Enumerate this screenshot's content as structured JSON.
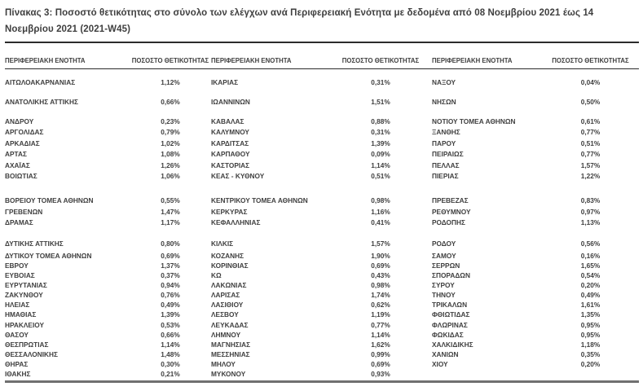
{
  "title": "Πίνακας 3: Ποσοστό θετικότητας στο σύνολο των ελέγχων ανά Περιφερειακή Ενότητα με δεδομένα από 08 Νοεμβρίου 2021 έως 14 Νοεμβρίου 2021 (2021-W45)",
  "colors": {
    "text": "#404040",
    "rule_dark": "#2b2b2b",
    "rule_gray": "#707070"
  },
  "table": {
    "headers": [
      "ΠΕΡΙΦΕΡΕΙΑΚΗ ΕΝΟΤΗΤΑ",
      "ΠΟΣΟΣΤΟ ΘΕΤΙΚΟΤΗΤΑΣ",
      "ΠΕΡΙΦΕΡΕΙΑΚΗ ΕΝΟΤΗΤΑ",
      "ΠΟΣΟΣΤΟ ΘΕΤΙΚΟΤΗΤΑΣ",
      "ΠΕΡΙΦΕΡΕΙΑΚΗ ΕΝΟΤΗΤΑ",
      "ΠΟΣΟΣΤΟ ΘΕΤΙΚΟΤΗΤΑΣ"
    ],
    "groups": [
      {
        "style": "spaced",
        "rows": [
          [
            "ΑΙΤΩΛΟΑΚΑΡΝΑΝΙΑΣ",
            "1,12%",
            "ΙΚΑΡΙΑΣ",
            "0,31%",
            "ΝΑΞΟΥ",
            "0,04%"
          ],
          [
            "ΑΝΑΤΟΛΙΚΗΣ ΑΤΤΙΚΗΣ",
            "0,66%",
            "ΙΩΑΝΝΙΝΩΝ",
            "1,51%",
            "ΝΗΣΩΝ",
            "0,50%"
          ]
        ]
      },
      {
        "style": "block-b",
        "rows": [
          [
            "ΑΝΔΡΟΥ",
            "0,23%",
            "ΚΑΒΑΛΑΣ",
            "0,88%",
            "ΝΟΤΙΟΥ ΤΟΜΕΑ ΑΘΗΝΩΝ",
            "0,61%"
          ],
          [
            "ΑΡΓΟΛΙΔΑΣ",
            "0,79%",
            "ΚΑΛΥΜΝΟΥ",
            "0,31%",
            "ΞΑΝΘΗΣ",
            "0,77%"
          ],
          [
            "ΑΡΚΑΔΙΑΣ",
            "1,02%",
            "ΚΑΡΔΙΤΣΑΣ",
            "1,39%",
            "ΠΑΡΟΥ",
            "0,51%"
          ],
          [
            "ΑΡΤΑΣ",
            "1,08%",
            "ΚΑΡΠΑΘΟΥ",
            "0,09%",
            "ΠΕΙΡΑΙΩΣ",
            "0,77%"
          ],
          [
            "ΑΧΑΪΑΣ",
            "1,26%",
            "ΚΑΣΤΟΡΙΑΣ",
            "1,14%",
            "ΠΕΛΛΑΣ",
            "1,57%"
          ],
          [
            "ΒΟΙΩΤΙΑΣ",
            "1,06%",
            "ΚΕΑΣ - ΚΥΘΝΟΥ",
            "0,51%",
            "ΠΙΕΡΙΑΣ",
            "1,22%"
          ]
        ]
      },
      {
        "style": "block-c",
        "rows": [
          [
            "ΒΟΡΕΙΟΥ ΤΟΜΕΑ ΑΘΗΝΩΝ",
            "0,55%",
            "ΚΕΝΤΡΙΚΟΥ ΤΟΜΕΑ ΑΘΗΝΩΝ",
            "0,98%",
            "ΠΡΕΒΕΖΑΣ",
            "0,83%"
          ],
          [
            "ΓΡΕΒΕΝΩΝ",
            "1,47%",
            "ΚΕΡΚΥΡΑΣ",
            "1,16%",
            "ΡΕΘΥΜΝΟΥ",
            "0,97%"
          ],
          [
            "ΔΡΑΜΑΣ",
            "1,17%",
            "ΚΕΦΑΛΛΗΝΙΑΣ",
            "0,41%",
            "ΡΟΔΟΠΗΣ",
            "1,13%"
          ]
        ]
      },
      {
        "style": "block-d",
        "rows": [
          [
            "ΔΥΤΙΚΗΣ ΑΤΤΙΚΗΣ",
            "0,80%",
            "ΚΙΛΚΙΣ",
            "1,57%",
            "ΡΟΔΟΥ",
            "0,56%"
          ]
        ]
      },
      {
        "style": "block-e",
        "rows": [
          [
            "ΔΥΤΙΚΟΥ ΤΟΜΕΑ ΑΘΗΝΩΝ",
            "0,69%",
            "ΚΟΖΑΝΗΣ",
            "1,90%",
            "ΣΑΜΟΥ",
            "0,16%"
          ],
          [
            "ΕΒΡΟΥ",
            "1,37%",
            "ΚΟΡΙΝΘΙΑΣ",
            "0,69%",
            "ΣΕΡΡΩΝ",
            "1,65%"
          ],
          [
            "ΕΥΒΟΙΑΣ",
            "0,37%",
            "ΚΩ",
            "0,43%",
            "ΣΠΟΡΑΔΩΝ",
            "0,54%"
          ],
          [
            "ΕΥΡΥΤΑΝΙΑΣ",
            "0,94%",
            "ΛΑΚΩΝΙΑΣ",
            "0,98%",
            "ΣΥΡΟΥ",
            "0,20%"
          ],
          [
            "ΖΑΚΥΝΘΟΥ",
            "0,76%",
            "ΛΑΡΙΣΑΣ",
            "1,74%",
            "ΤΗΝΟΥ",
            "0,49%"
          ],
          [
            "ΗΛΕΙΑΣ",
            "0,49%",
            "ΛΑΣΙΘΙΟΥ",
            "0,62%",
            "ΤΡΙΚΑΛΩΝ",
            "1,61%"
          ],
          [
            "ΗΜΑΘΙΑΣ",
            "1,39%",
            "ΛΕΣΒΟΥ",
            "1,19%",
            "ΦΘΙΩΤΙΔΑΣ",
            "1,35%"
          ],
          [
            "ΗΡΑΚΛΕΙΟΥ",
            "0,53%",
            "ΛΕΥΚΑΔΑΣ",
            "0,77%",
            "ΦΛΩΡΙΝΑΣ",
            "0,95%"
          ],
          [
            "ΘΑΣΟΥ",
            "0,66%",
            "ΛΗΜΝΟΥ",
            "1,14%",
            "ΦΩΚΙΔΑΣ",
            "0,95%"
          ],
          [
            "ΘΕΣΠΡΩΤΙΑΣ",
            "1,14%",
            "ΜΑΓΝΗΣΙΑΣ",
            "1,62%",
            "ΧΑΛΚΙΔΙΚΗΣ",
            "1,18%"
          ],
          [
            "ΘΕΣΣΑΛΟΝΙΚΗΣ",
            "1,48%",
            "ΜΕΣΣΗΝΙΑΣ",
            "0,99%",
            "ΧΑΝΙΩΝ",
            "0,35%"
          ],
          [
            "ΘΗΡΑΣ",
            "0,30%",
            "ΜΗΛΟΥ",
            "0,69%",
            "ΧΙΟΥ",
            "0,20%"
          ],
          [
            "ΙΘΑΚΗΣ",
            "0,21%",
            "ΜΥΚΟΝΟΥ",
            "0,93%",
            "",
            ""
          ]
        ]
      }
    ]
  }
}
